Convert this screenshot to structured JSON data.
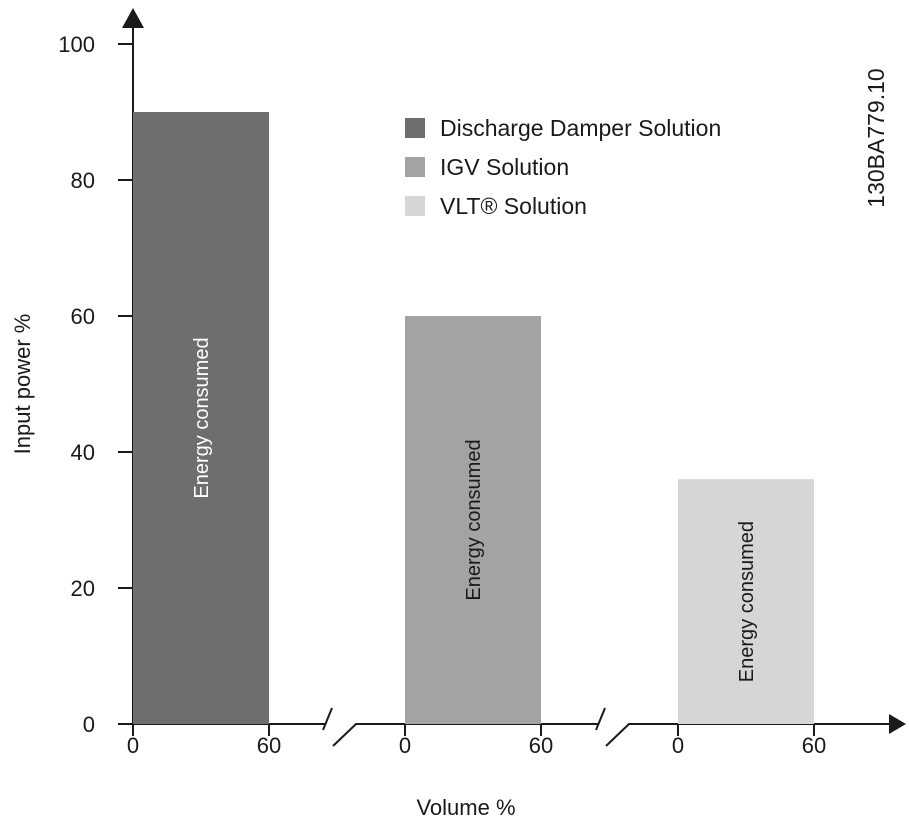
{
  "chart_data": {
    "type": "bar",
    "title": "",
    "xlabel": "Volume %",
    "ylabel": "Input power %",
    "ylim": [
      0,
      100
    ],
    "yticks": [
      0,
      20,
      40,
      60,
      80,
      100
    ],
    "grid": false,
    "legend_position": "top-right",
    "figure_code": "130BA779.10",
    "series": [
      {
        "name": "Discharge Damper Solution",
        "value": 90,
        "x_range": [
          0,
          60
        ],
        "x_ticks": [
          "0",
          "60"
        ],
        "color": "#6e6e6e",
        "bar_label": "Energy consumed",
        "label_color": "#ffffff"
      },
      {
        "name": "IGV Solution",
        "value": 60,
        "x_range": [
          0,
          60
        ],
        "x_ticks": [
          "0",
          "60"
        ],
        "color": "#a3a3a3",
        "bar_label": "Energy consumed",
        "label_color": "#1a1a1a"
      },
      {
        "name": "VLT® Solution",
        "value": 36,
        "x_range": [
          0,
          60
        ],
        "x_ticks": [
          "0",
          "60"
        ],
        "color": "#d6d6d6",
        "bar_label": "Energy consumed",
        "label_color": "#1a1a1a"
      }
    ]
  }
}
